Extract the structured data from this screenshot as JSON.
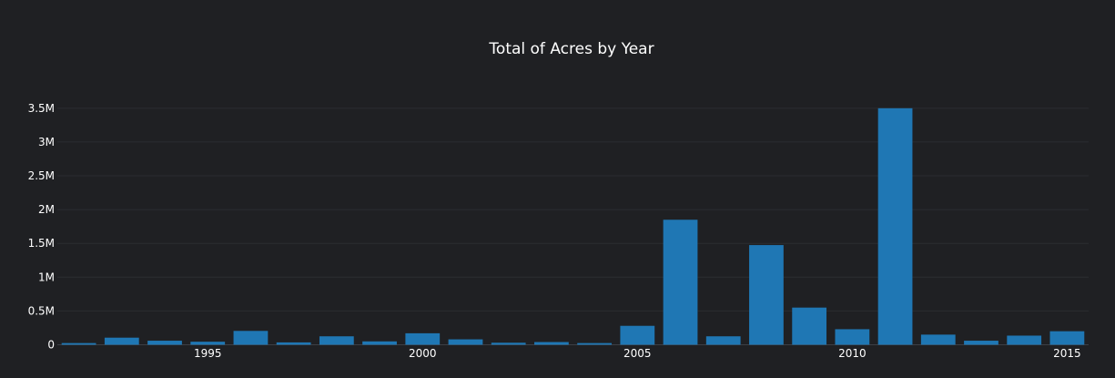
{
  "chart_data": {
    "type": "bar",
    "title": "Total of Acres by Year",
    "xlabel": "",
    "ylabel": "",
    "x": [
      1992,
      1993,
      1994,
      1995,
      1996,
      1997,
      1998,
      1999,
      2000,
      2001,
      2002,
      2003,
      2004,
      2005,
      2006,
      2007,
      2008,
      2009,
      2010,
      2011,
      2012,
      2013,
      2014,
      2015
    ],
    "values": [
      25000,
      105000,
      60000,
      45000,
      205000,
      35000,
      125000,
      50000,
      170000,
      80000,
      30000,
      40000,
      25000,
      280000,
      1850000,
      125000,
      1475000,
      550000,
      230000,
      3500000,
      150000,
      60000,
      135000,
      200000
    ],
    "ylim": [
      0,
      3700000
    ],
    "yticks": [
      0,
      500000,
      1000000,
      1500000,
      2000000,
      2500000,
      3000000,
      3500000
    ],
    "ytick_labels": [
      "0",
      "0.5M",
      "1M",
      "1.5M",
      "2M",
      "2.5M",
      "3M",
      "3.5M"
    ],
    "xticks": [
      1995,
      2000,
      2005,
      2010,
      2015
    ],
    "xtick_labels": [
      "1995",
      "2000",
      "2005",
      "2010",
      "2015"
    ],
    "bar_color": "#1f77b4",
    "grid": true,
    "legend": false
  }
}
